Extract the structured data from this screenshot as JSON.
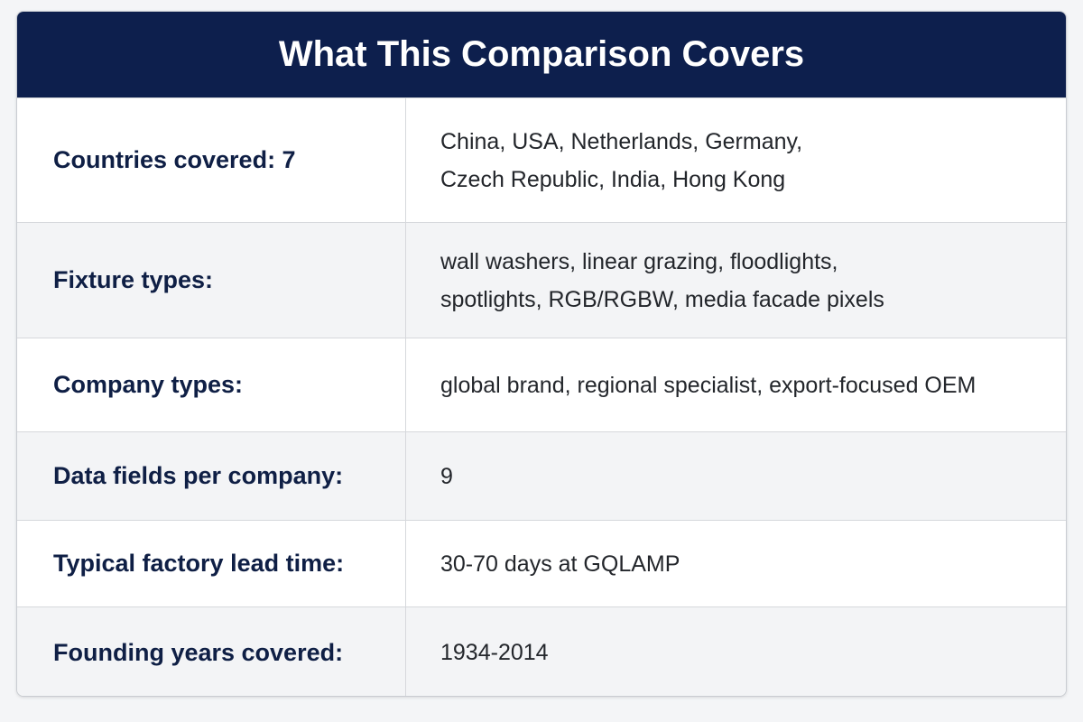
{
  "header": {
    "title": "What This Comparison Covers"
  },
  "table": {
    "rows": [
      {
        "label": "Countries covered: 7",
        "lines": [
          "China, USA, Netherlands, Germany,",
          "Czech Republic, India, Hong Kong"
        ]
      },
      {
        "label": "Fixture types:",
        "lines": [
          "wall washers, linear grazing, floodlights,",
          "spotlights, RGB/RGBW, media facade pixels"
        ]
      },
      {
        "label": "Company types:",
        "lines": [
          "global brand, regional specialist, export-focused OEM"
        ]
      },
      {
        "label": "Data fields per company:",
        "lines": [
          9
        ]
      },
      {
        "label": "Typical factory lead time:",
        "lines": [
          "30-70 days at GQLAMP"
        ]
      },
      {
        "label": "Founding years covered:",
        "lines": [
          "1934-2014"
        ]
      }
    ]
  }
}
